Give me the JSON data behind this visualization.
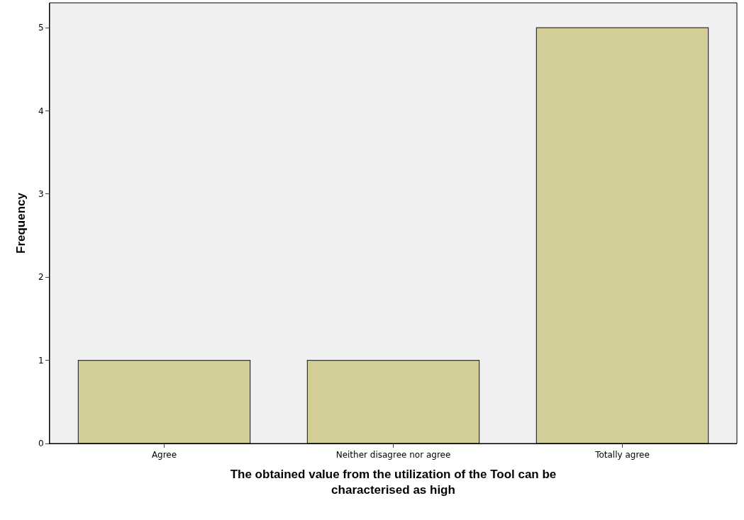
{
  "chart_data": {
    "type": "bar",
    "categories": [
      "Agree",
      "Neither disagree nor agree",
      "Totally agree"
    ],
    "values": [
      1,
      1,
      5
    ],
    "color": "#d3ce97",
    "xlabel": "The obtained value from the utilization of the Tool can be characterised as high",
    "ylabel": "Frequency",
    "ylim": [
      0,
      5.3
    ],
    "yticks": [
      0,
      1,
      2,
      3,
      4,
      5
    ],
    "grid": false
  }
}
